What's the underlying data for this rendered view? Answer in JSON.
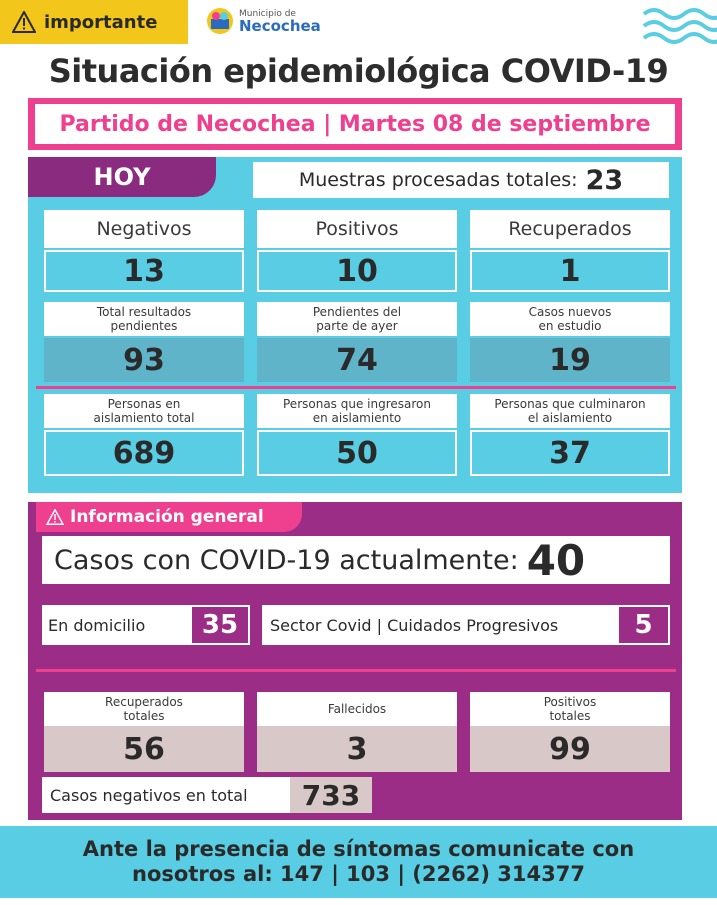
{
  "badge": {
    "label": "importante",
    "icon": "warning-icon"
  },
  "logo": {
    "line1": "Municipio de",
    "line2": "Necochea"
  },
  "title": "Situación epidemiológica COVID-19",
  "subtitle": "Partido de Necochea | Martes 08 de septiembre",
  "today": {
    "tab": "HOY",
    "muestras_label": "Muestras procesadas totales:",
    "muestras_value": "23",
    "row1": [
      {
        "label": "Negativos",
        "value": "13"
      },
      {
        "label": "Positivos",
        "value": "10"
      },
      {
        "label": "Recuperados",
        "value": "1"
      }
    ],
    "row2": [
      {
        "label1": "Total resultados",
        "label2": "pendientes",
        "value": "93"
      },
      {
        "label1": "Pendientes del",
        "label2": "parte de ayer",
        "value": "74"
      },
      {
        "label1": "Casos nuevos",
        "label2": "en estudio",
        "value": "19"
      }
    ],
    "row3": [
      {
        "label1": "Personas en",
        "label2": "aislamiento total",
        "value": "689"
      },
      {
        "label1": "Personas que ingresaron",
        "label2": "en aislamiento",
        "value": "50"
      },
      {
        "label1": "Personas que culminaron",
        "label2": "el aislamiento",
        "value": "37"
      }
    ]
  },
  "info": {
    "tab": "Información general",
    "casos_label": "Casos con COVID-19 actualmente:",
    "casos_value": "40",
    "domicilio_label": "En domicilio",
    "domicilio_value": "35",
    "sector_label": "Sector Covid | Cuidados Progresivos",
    "sector_value": "5",
    "totals": [
      {
        "label1": "Recuperados",
        "label2": "totales",
        "value": "56"
      },
      {
        "label1": "Fallecidos",
        "label2": "",
        "value": "3"
      },
      {
        "label1": "Positivos",
        "label2": "totales",
        "value": "99"
      }
    ],
    "negativos_label": "Casos negativos en total",
    "negativos_value": "733"
  },
  "footer": {
    "line1": "Ante la presencia de síntomas comunicate con",
    "line2": "nosotros al: 147 | 103 | (2262) 314377"
  },
  "colors": {
    "cyan": "#58cde3",
    "magenta": "#ef3f8f",
    "purple": "#9b2d87",
    "yellow": "#f2c61b",
    "steel": "#5fb4c9",
    "gray": "#d9c8c8"
  }
}
